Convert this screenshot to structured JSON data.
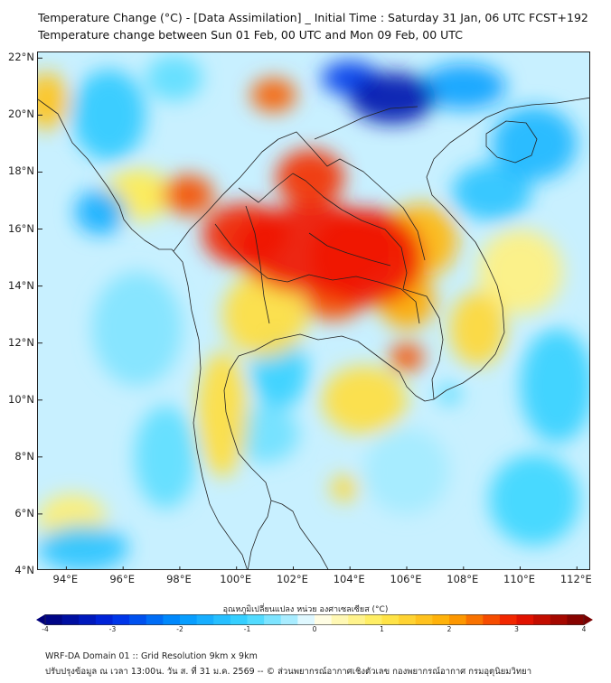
{
  "title": {
    "line1": "Temperature Change (°C) - [Data Assimilation] _ Initial Time : Saturday 31 Jan, 06 UTC FCST+192",
    "line2": "Temperature change between Sun 01 Feb, 00 UTC and Mon 09 Feb, 00 UTC"
  },
  "map": {
    "extent": {
      "lon_min": 93,
      "lon_max": 112.5,
      "lat_min": 4,
      "lat_max": 22.2
    },
    "lat_ticks": [
      {
        "value": 22,
        "label": "22°N"
      },
      {
        "value": 20,
        "label": "20°N"
      },
      {
        "value": 18,
        "label": "18°N"
      },
      {
        "value": 16,
        "label": "16°N"
      },
      {
        "value": 14,
        "label": "14°N"
      },
      {
        "value": 12,
        "label": "12°N"
      },
      {
        "value": 10,
        "label": "10°N"
      },
      {
        "value": 8,
        "label": "8°N"
      },
      {
        "value": 6,
        "label": "6°N"
      },
      {
        "value": 4,
        "label": "4°N"
      }
    ],
    "lon_ticks": [
      {
        "value": 94,
        "label": "94°E"
      },
      {
        "value": 96,
        "label": "96°E"
      },
      {
        "value": 98,
        "label": "98°E"
      },
      {
        "value": 100,
        "label": "100°E"
      },
      {
        "value": 102,
        "label": "102°E"
      },
      {
        "value": 104,
        "label": "104°E"
      },
      {
        "value": 106,
        "label": "106°E"
      },
      {
        "value": 108,
        "label": "108°E"
      },
      {
        "value": 110,
        "label": "110°E"
      },
      {
        "value": 112,
        "label": "112°E"
      }
    ],
    "field_blobs": [
      {
        "lon": 102.8,
        "lat": 15.3,
        "rx": 2.8,
        "ry": 1.6,
        "value": 3.0
      },
      {
        "lon": 104.6,
        "lat": 15.0,
        "rx": 2.0,
        "ry": 1.7,
        "value": 3.0
      },
      {
        "lon": 100.3,
        "lat": 15.8,
        "rx": 1.5,
        "ry": 1.1,
        "value": 2.9
      },
      {
        "lon": 102.6,
        "lat": 17.8,
        "rx": 1.2,
        "ry": 1.0,
        "value": 2.8
      },
      {
        "lon": 98.3,
        "lat": 17.2,
        "rx": 0.9,
        "ry": 0.7,
        "value": 2.6
      },
      {
        "lon": 101.3,
        "lat": 20.7,
        "rx": 0.8,
        "ry": 0.6,
        "value": 2.5
      },
      {
        "lon": 106.0,
        "lat": 11.5,
        "rx": 0.6,
        "ry": 0.5,
        "value": 2.6
      },
      {
        "lon": 106.0,
        "lat": 13.5,
        "rx": 1.0,
        "ry": 1.0,
        "value": 2.0
      },
      {
        "lon": 103.4,
        "lat": 13.4,
        "rx": 1.0,
        "ry": 0.6,
        "value": 2.6
      },
      {
        "lon": 106.5,
        "lat": 15.6,
        "rx": 1.3,
        "ry": 1.3,
        "value": 1.8
      },
      {
        "lon": 101.0,
        "lat": 13.0,
        "rx": 1.5,
        "ry": 1.5,
        "value": 1.2
      },
      {
        "lon": 104.5,
        "lat": 10.0,
        "rx": 1.5,
        "ry": 1.2,
        "value": 1.2
      },
      {
        "lon": 99.5,
        "lat": 9.5,
        "rx": 0.9,
        "ry": 2.2,
        "value": 1.2
      },
      {
        "lon": 103.8,
        "lat": 6.9,
        "rx": 0.5,
        "ry": 0.45,
        "value": 1.3
      },
      {
        "lon": 93.3,
        "lat": 20.5,
        "rx": 0.8,
        "ry": 1.0,
        "value": 1.6
      },
      {
        "lon": 96.5,
        "lat": 17.2,
        "rx": 1.2,
        "ry": 0.9,
        "value": 1.0
      },
      {
        "lon": 108.5,
        "lat": 12.5,
        "rx": 1.0,
        "ry": 1.3,
        "value": 1.3
      },
      {
        "lon": 94.2,
        "lat": 5.8,
        "rx": 1.2,
        "ry": 0.9,
        "value": 0.8
      },
      {
        "lon": 110.0,
        "lat": 14.5,
        "rx": 1.5,
        "ry": 1.5,
        "value": 0.7
      },
      {
        "lon": 105.5,
        "lat": 20.6,
        "rx": 1.5,
        "ry": 0.9,
        "value": -3.5
      },
      {
        "lon": 104.0,
        "lat": 21.3,
        "rx": 1.0,
        "ry": 0.6,
        "value": -2.8
      },
      {
        "lon": 108.0,
        "lat": 21.0,
        "rx": 1.5,
        "ry": 0.8,
        "value": -1.8
      },
      {
        "lon": 110.5,
        "lat": 19.0,
        "rx": 1.5,
        "ry": 1.3,
        "value": -1.5
      },
      {
        "lon": 109.0,
        "lat": 17.3,
        "rx": 1.4,
        "ry": 1.0,
        "value": -1.3
      },
      {
        "lon": 95.2,
        "lat": 16.6,
        "rx": 0.9,
        "ry": 0.8,
        "value": -1.6
      },
      {
        "lon": 95.5,
        "lat": 20.0,
        "rx": 1.3,
        "ry": 1.6,
        "value": -1.2
      },
      {
        "lon": 97.8,
        "lat": 21.3,
        "rx": 1.0,
        "ry": 0.8,
        "value": -0.8
      },
      {
        "lon": 101.5,
        "lat": 11.0,
        "rx": 1.0,
        "ry": 1.3,
        "value": -1.1
      },
      {
        "lon": 94.6,
        "lat": 4.8,
        "rx": 1.6,
        "ry": 0.8,
        "value": -1.3
      },
      {
        "lon": 111.3,
        "lat": 10.5,
        "rx": 1.3,
        "ry": 2.0,
        "value": -1.1
      },
      {
        "lon": 110.5,
        "lat": 6.5,
        "rx": 1.6,
        "ry": 1.6,
        "value": -1.0
      },
      {
        "lon": 97.5,
        "lat": 8.0,
        "rx": 1.1,
        "ry": 1.8,
        "value": -0.8
      },
      {
        "lon": 101.0,
        "lat": 8.8,
        "rx": 1.2,
        "ry": 1.0,
        "value": -0.7
      },
      {
        "lon": 96.5,
        "lat": 12.5,
        "rx": 1.6,
        "ry": 2.0,
        "value": -0.6
      },
      {
        "lon": 107.5,
        "lat": 10.2,
        "rx": 0.4,
        "ry": 0.35,
        "value": -0.9
      },
      {
        "lon": 106.0,
        "lat": 7.5,
        "rx": 1.5,
        "ry": 1.5,
        "value": -0.4
      }
    ]
  },
  "colorbar": {
    "title": "อุณหภูมิเปลี่ยนแปลง หน่วย องศาเซลเซียส (°C)",
    "min": -4,
    "max": 4,
    "step": 0.25,
    "tick_labels": [
      "-4",
      "-3",
      "-2",
      "-1",
      "0",
      "1",
      "2",
      "3",
      "4"
    ]
  },
  "footer": {
    "line1": "WRF-DA Domain 01 :: Grid Resolution 9km x 9km",
    "line2": "ปรับปรุงข้อมูล ณ เวลา 13:00น. วัน ส. ที่ 31 ม.ค. 2569 -- © ส่วนพยากรณ์อากาศเชิงตัวเลข กองพยากรณ์อากาศ กรมอุตุนิยมวิทยา"
  },
  "colors": {
    "cold_max": "#00007a",
    "neutral": "#ffffff",
    "warm_max": "#7a0000",
    "coastline": "#222222",
    "background_field": "#c8f0ff"
  }
}
